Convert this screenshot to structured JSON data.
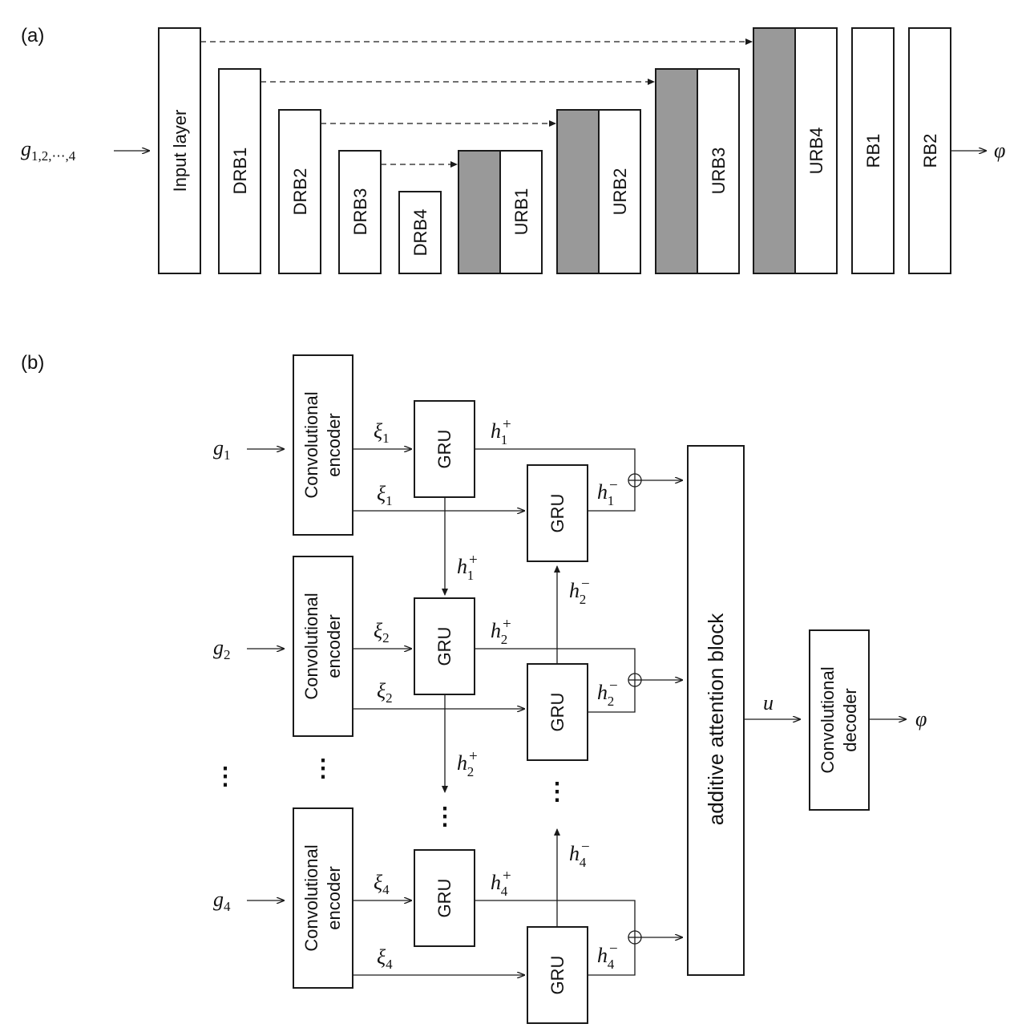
{
  "panel_a": {
    "label": "(a)",
    "input": {
      "base": "g",
      "subscript": "1,2,⋯,4"
    },
    "output": "φ",
    "blocks": [
      "Input layer",
      "DRB1",
      "DRB2",
      "DRB3",
      "DRB4",
      "URB1",
      "URB2",
      "URB3",
      "URB4",
      "RB1",
      "RB2"
    ]
  },
  "panel_b": {
    "label": "(b)",
    "inputs": [
      {
        "base": "g",
        "sub": "1"
      },
      {
        "base": "g",
        "sub": "2"
      },
      {
        "base": "g",
        "sub": "4"
      }
    ],
    "encoder_line1": "Convolutional",
    "encoder_line2": "encoder",
    "gru": "GRU",
    "xi": [
      {
        "base": "ξ",
        "sub": "1"
      },
      {
        "base": "ξ",
        "sub": "2"
      },
      {
        "base": "ξ",
        "sub": "4"
      }
    ],
    "h_plus": [
      {
        "base": "h",
        "sub": "1",
        "sup": "+"
      },
      {
        "base": "h",
        "sub": "2",
        "sup": "+"
      },
      {
        "base": "h",
        "sub": "4",
        "sup": "+"
      }
    ],
    "h_minus": [
      {
        "base": "h",
        "sub": "1",
        "sup": "−"
      },
      {
        "base": "h",
        "sub": "2",
        "sup": "−"
      },
      {
        "base": "h",
        "sub": "4",
        "sup": "−"
      }
    ],
    "attention": "additive attention block",
    "u": "u",
    "decoder_line1": "Convolutional",
    "decoder_line2": "decoder",
    "output": "φ",
    "ellipsis": "⋮"
  }
}
